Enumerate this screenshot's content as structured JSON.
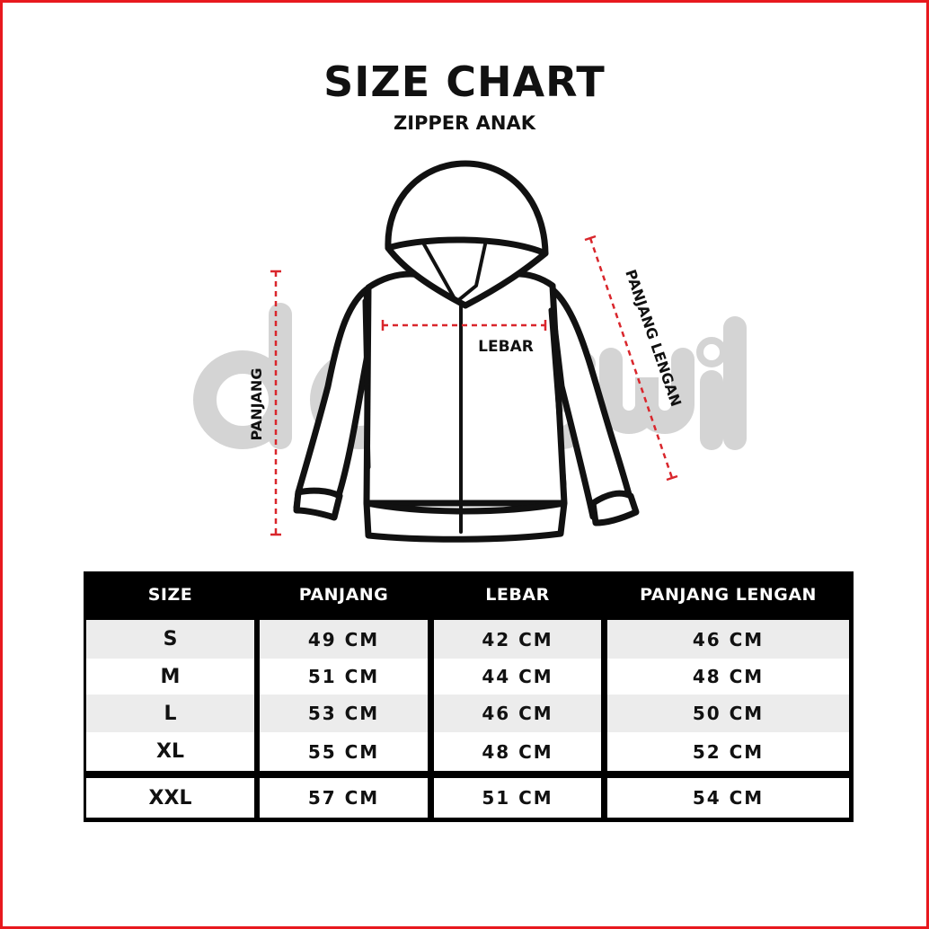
{
  "header": {
    "title": "SIZE CHART",
    "subtitle": "ZIPPER ANAK"
  },
  "diagram": {
    "labels": {
      "panjang": "PANJANG",
      "lebar": "LEBAR",
      "panjang_lengan": "PANJANG LENGAN"
    },
    "measure_line_color": "#d9262c",
    "watermark": "donswit"
  },
  "table": {
    "columns": [
      "SIZE",
      "PANJANG",
      "LEBAR",
      "PANJANG LENGAN"
    ],
    "rows": [
      [
        "S",
        "49 CM",
        "42 CM",
        "46 CM"
      ],
      [
        "M",
        "51 CM",
        "44 CM",
        "48 CM"
      ],
      [
        "L",
        "53 CM",
        "46 CM",
        "50 CM"
      ],
      [
        "XL",
        "55 CM",
        "48 CM",
        "52 CM"
      ],
      [
        "XXL",
        "57 CM",
        "51 CM",
        "54 CM"
      ]
    ]
  },
  "colors": {
    "border": "#e8191e",
    "header_bg": "#000000",
    "row_alt": "#ececec"
  }
}
